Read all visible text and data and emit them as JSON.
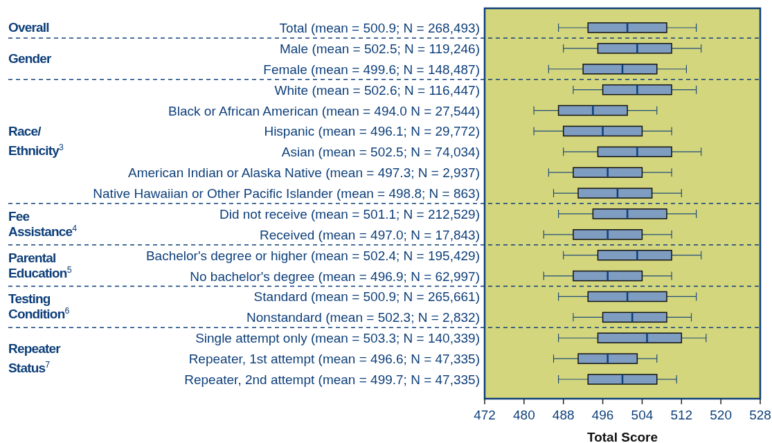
{
  "chart_data": {
    "type": "box",
    "xlabel": "Total Score",
    "orientation": "horizontal",
    "color": "#7f9dc0",
    "categories": [
      "Total (mean = 500.9; N = 268,493)",
      "Male (mean = 502.5; N = 119,246)",
      "Female (mean = 499.6; N = 148,487)",
      "White (mean = 502.6; N = 116,447)",
      "Black or African American (mean = 494.0 N = 27,544)",
      "Hispanic (mean = 496.1; N = 29,772)",
      "Asian (mean = 502.5; N = 74,034)",
      "American Indian or Alaska Native (mean = 497.3; N = 2,937)",
      "Native Hawaiian or Other Pacific Islander (mean = 498.8; N = 863)",
      "Did not receive (mean = 501.1; N = 212,529)",
      "Received (mean = 497.0; N = 17,843)",
      "Bachelor's degree or higher (mean = 502.4; N = 195,429)",
      "No bachelor's degree (mean = 496.9; N = 62,997)",
      "Standard (mean = 500.9; N = 265,661)",
      "Nonstandard (mean = 502.3; N = 2,832)",
      "Single attempt only (mean = 503.3; N = 140,339)",
      "Repeater, 1st attempt (mean = 496.6; N = 47,335)",
      "Repeater, 2nd attempt (mean = 499.7; N = 47,335)"
    ],
    "boxes": [
      {
        "low": 487,
        "q1": 493,
        "median": 501,
        "q3": 509,
        "high": 515
      },
      {
        "low": 488,
        "q1": 495,
        "median": 503,
        "q3": 510,
        "high": 516
      },
      {
        "low": 485,
        "q1": 492,
        "median": 500,
        "q3": 507,
        "high": 513
      },
      {
        "low": 490,
        "q1": 496,
        "median": 503,
        "q3": 510,
        "high": 515
      },
      {
        "low": 482,
        "q1": 487,
        "median": 494,
        "q3": 501,
        "high": 507
      },
      {
        "low": 482,
        "q1": 488,
        "median": 496,
        "q3": 504,
        "high": 510
      },
      {
        "low": 488,
        "q1": 495,
        "median": 503,
        "q3": 510,
        "high": 516
      },
      {
        "low": 485,
        "q1": 490,
        "median": 497,
        "q3": 504,
        "high": 510
      },
      {
        "low": 486,
        "q1": 491,
        "median": 499,
        "q3": 506,
        "high": 512
      },
      {
        "low": 487,
        "q1": 494,
        "median": 501,
        "q3": 509,
        "high": 515
      },
      {
        "low": 484,
        "q1": 490,
        "median": 497,
        "q3": 504,
        "high": 510
      },
      {
        "low": 488,
        "q1": 495,
        "median": 503,
        "q3": 510,
        "high": 516
      },
      {
        "low": 484,
        "q1": 490,
        "median": 497,
        "q3": 504,
        "high": 510
      },
      {
        "low": 487,
        "q1": 493,
        "median": 501,
        "q3": 509,
        "high": 515
      },
      {
        "low": 490,
        "q1": 496,
        "median": 502,
        "q3": 509,
        "high": 514
      },
      {
        "low": 487,
        "q1": 495,
        "median": 505,
        "q3": 512,
        "high": 517
      },
      {
        "low": 486,
        "q1": 491,
        "median": 497,
        "q3": 503,
        "high": 507
      },
      {
        "low": 487,
        "q1": 493,
        "median": 500,
        "q3": 507,
        "high": 511
      }
    ],
    "xlim": [
      472,
      528
    ],
    "xticks": [
      472,
      480,
      488,
      496,
      504,
      512,
      520,
      528
    ],
    "grid": false,
    "y2_categories": [
      "Overall",
      "Gender",
      null,
      null,
      null,
      "Race/\nEthnicity$^{3}$",
      null,
      null,
      null,
      "Fee\nAssistance$^{4}$",
      null,
      "Parental\nEducation$^{5}$",
      null,
      "Testing\nCondition$^{6}$",
      null,
      null,
      "Repeater\nStatus$^{7}$",
      null
    ]
  }
}
